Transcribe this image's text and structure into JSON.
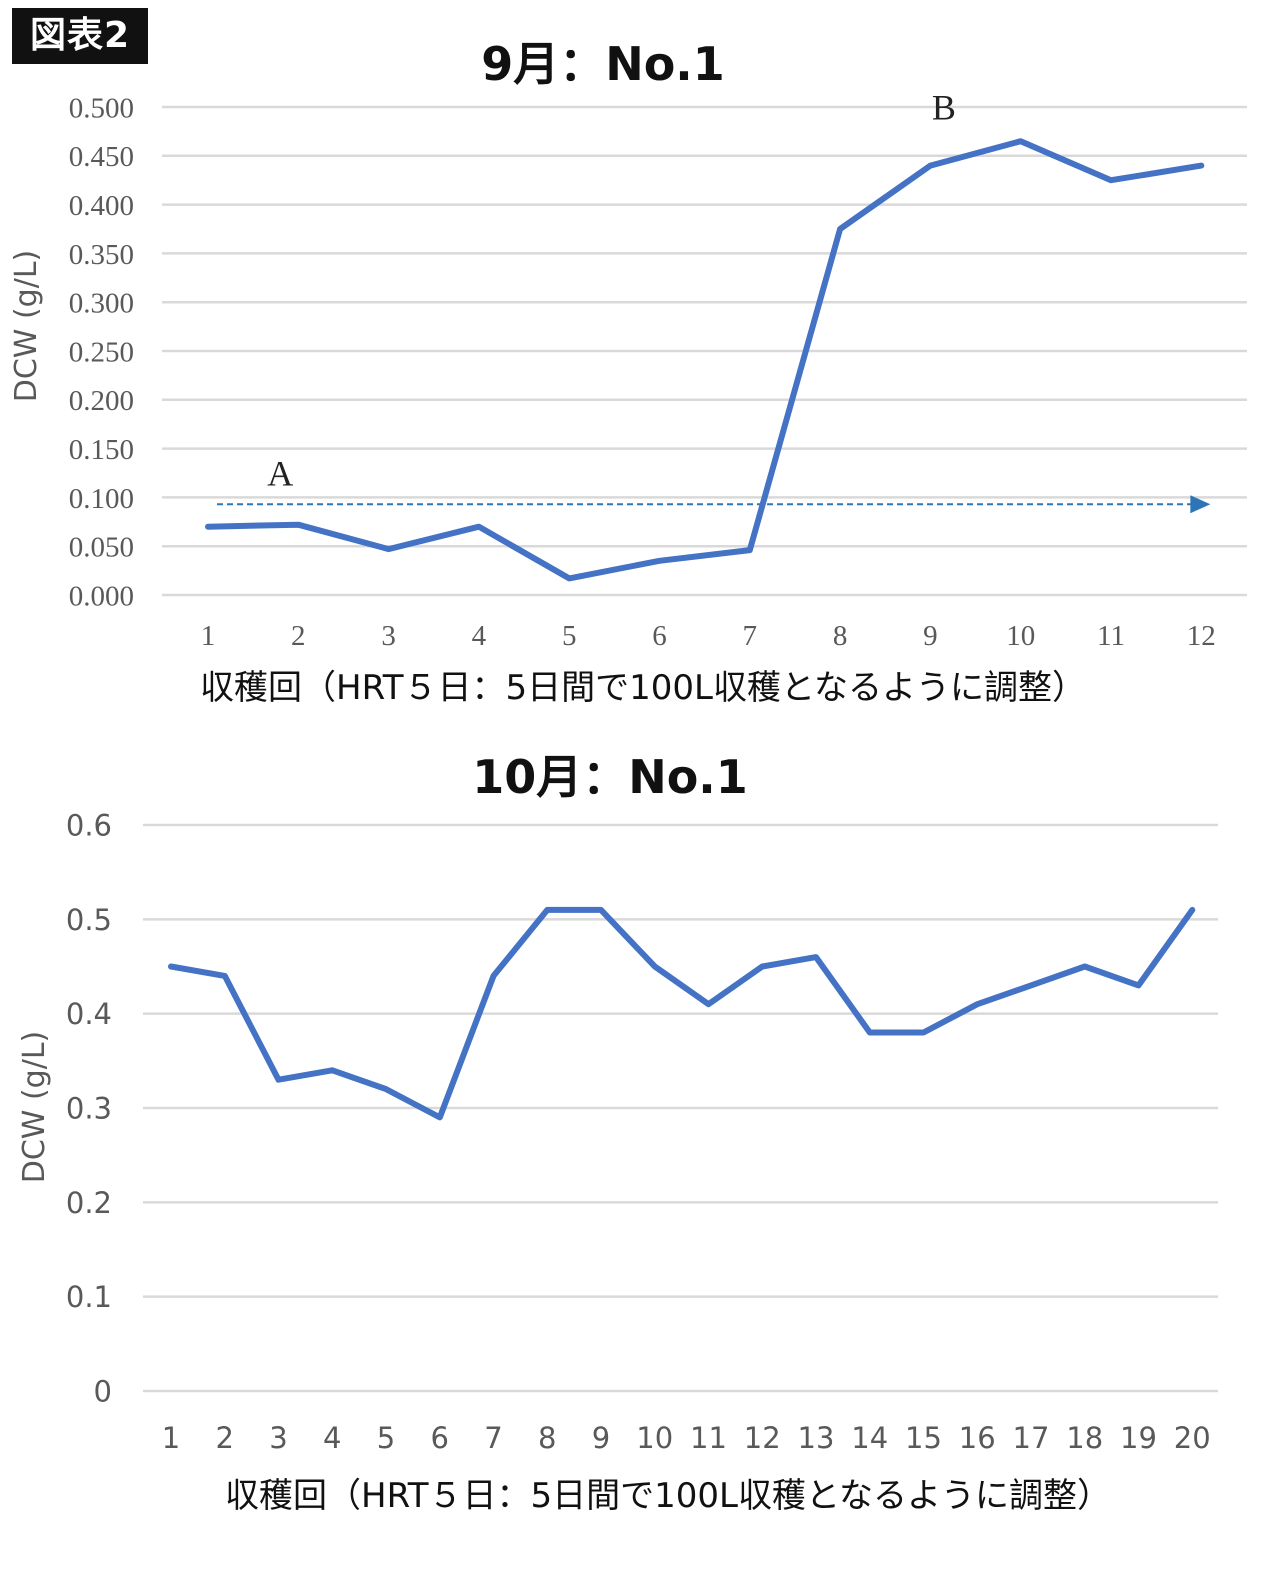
{
  "badge": "図表2",
  "chart_data": [
    {
      "type": "line",
      "title": "9月：No.1",
      "xlabel": "収穫回（HRT５日：5日間で100L収穫となるように調整）",
      "ylabel": "DCW (g/L)",
      "ylim": [
        0,
        0.5
      ],
      "yticks": [
        "0.000",
        "0.050",
        "0.100",
        "0.150",
        "0.200",
        "0.250",
        "0.300",
        "0.350",
        "0.400",
        "0.450",
        "0.500"
      ],
      "categories": [
        "1",
        "2",
        "3",
        "4",
        "5",
        "6",
        "7",
        "8",
        "9",
        "10",
        "11",
        "12"
      ],
      "series": [
        {
          "values": [
            0.07,
            0.072,
            0.047,
            0.07,
            0.017,
            0.035,
            0.046,
            0.375,
            0.44,
            0.465,
            0.425,
            0.44
          ]
        }
      ],
      "reference_arrow": {
        "y": 0.093,
        "x_from": 1.1,
        "x_to": 12.1
      },
      "annotations": [
        {
          "text": "A",
          "x": 1.8,
          "y": 0.112
        },
        {
          "text": "B",
          "x": 9.15,
          "y": 0.487
        }
      ],
      "grid": true,
      "legend": "none",
      "colors": {
        "line": "#4472C4",
        "grid": "#d9d9d9",
        "arrow": "#2e75b6"
      }
    },
    {
      "type": "line",
      "title": "10月：No.1",
      "xlabel": "収穫回（HRT５日：5日間で100L収穫となるように調整）",
      "ylabel": "DCW (g/L)",
      "ylim": [
        0,
        0.6
      ],
      "yticks": [
        "0",
        "0.1",
        "0.2",
        "0.3",
        "0.4",
        "0.5",
        "0.6"
      ],
      "categories": [
        "1",
        "2",
        "3",
        "4",
        "5",
        "6",
        "7",
        "8",
        "9",
        "10",
        "11",
        "12",
        "13",
        "14",
        "15",
        "16",
        "17",
        "18",
        "19",
        "20"
      ],
      "series": [
        {
          "values": [
            0.45,
            0.44,
            0.33,
            0.34,
            0.32,
            0.29,
            0.44,
            0.51,
            0.51,
            0.45,
            0.41,
            0.45,
            0.46,
            0.38,
            0.38,
            0.41,
            0.43,
            0.45,
            0.43,
            0.51
          ]
        }
      ],
      "grid": true,
      "legend": "none",
      "colors": {
        "line": "#4472C4",
        "grid": "#d9d9d9"
      }
    }
  ]
}
